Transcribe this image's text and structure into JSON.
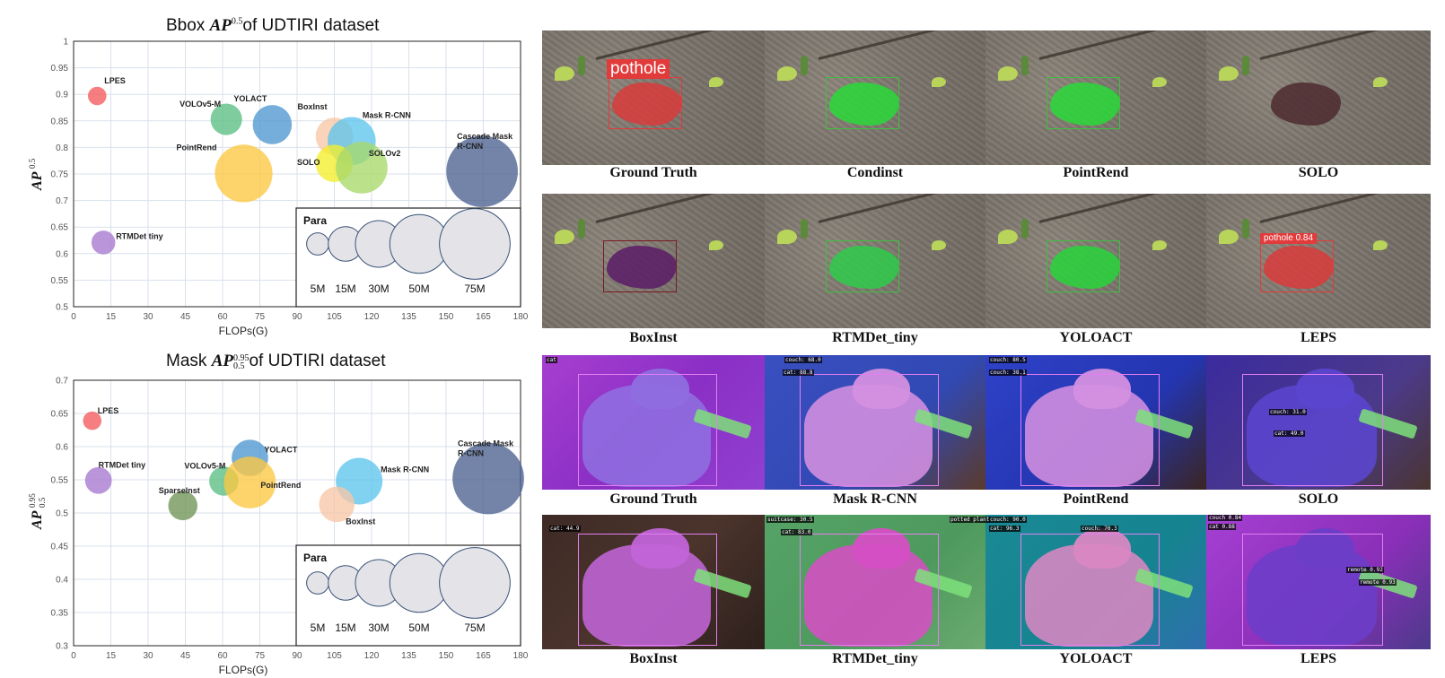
{
  "chart_data": [
    {
      "type": "scatter",
      "title_prefix": "Bbox",
      "title_metric": "AP",
      "title_sup": "0.5",
      "title_sub": "",
      "title_suffix": "of UDTIRI dataset",
      "xlabel": "FLOPs(G)",
      "ylabel_main": "AP",
      "ylabel_sup": "0.5",
      "ylabel_sub": "",
      "xlim": [
        0,
        180
      ],
      "ylim": [
        0.5,
        1.0
      ],
      "xticks": [
        0,
        15,
        30,
        45,
        60,
        75,
        90,
        105,
        120,
        135,
        150,
        165,
        180
      ],
      "yticks": [
        "0.5",
        "0.55",
        "0.6",
        "0.65",
        "0.7",
        "0.75",
        "0.8",
        "0.85",
        "0.9",
        "0.95",
        "1"
      ],
      "grid": true,
      "legend": {
        "title": "Para",
        "placement": "bottom-right",
        "sizes": [
          5,
          15,
          30,
          50,
          75
        ],
        "labels": [
          "5M",
          "15M",
          "30M",
          "50M",
          "75M"
        ]
      },
      "points": [
        {
          "name": "LPES",
          "x": 9.5,
          "y": 0.897,
          "params": 3,
          "color": "#f4595c"
        },
        {
          "name": "VOLOv5-M",
          "x": 61.5,
          "y": 0.853,
          "params": 12,
          "color": "#5bbf83"
        },
        {
          "name": "YOLACT",
          "x": 80,
          "y": 0.843,
          "params": 20,
          "color": "#4e97d1"
        },
        {
          "name": "BoxInst",
          "x": 105,
          "y": 0.821,
          "params": 18,
          "color": "#f7c7a6"
        },
        {
          "name": "Mask R-CNN",
          "x": 112,
          "y": 0.812,
          "params": 32,
          "color": "#5ec4ec"
        },
        {
          "name": "Cascade Mask R-CNN",
          "x": 164.5,
          "y": 0.755,
          "params": 77,
          "color": "#4b6290"
        },
        {
          "name": "PointRend",
          "x": 68.5,
          "y": 0.751,
          "params": 48,
          "color": "#fcc841"
        },
        {
          "name": "SOLO",
          "x": 105,
          "y": 0.77,
          "params": 18,
          "color": "#f4ee2c"
        },
        {
          "name": "SOLOv2",
          "x": 116,
          "y": 0.762,
          "params": 38,
          "color": "#a8d86a"
        },
        {
          "name": "RTMDet tiny",
          "x": 12,
          "y": 0.621,
          "params": 6,
          "color": "#a677cf"
        }
      ]
    },
    {
      "type": "scatter",
      "title_prefix": "Mask",
      "title_metric": "AP",
      "title_sup": "0.95",
      "title_sub": "0.5",
      "title_suffix": "of UDTIRI dataset",
      "xlabel": "FLOPs(G)",
      "ylabel_main": "AP",
      "ylabel_sup": "0.95",
      "ylabel_sub": "0.5",
      "xlim": [
        0,
        180
      ],
      "ylim": [
        0.3,
        0.7
      ],
      "xticks": [
        0,
        15,
        30,
        45,
        60,
        75,
        90,
        105,
        120,
        135,
        150,
        165,
        180
      ],
      "yticks": [
        "0.3",
        "0.35",
        "0.4",
        "0.45",
        "0.5",
        "0.55",
        "0.6",
        "0.65",
        "0.7"
      ],
      "grid": true,
      "legend": {
        "title": "Para",
        "placement": "bottom-right",
        "sizes": [
          5,
          15,
          30,
          50,
          75
        ],
        "labels": [
          "5M",
          "15M",
          "30M",
          "50M",
          "75M"
        ]
      },
      "points": [
        {
          "name": "LPES",
          "x": 7.5,
          "y": 0.639,
          "params": 3,
          "color": "#f4595c"
        },
        {
          "name": "RTMDet tiny",
          "x": 10,
          "y": 0.549,
          "params": 8,
          "color": "#a677cf"
        },
        {
          "name": "VOLOv5-M",
          "x": 60.5,
          "y": 0.548,
          "params": 10,
          "color": "#5bbf83"
        },
        {
          "name": "YOLACT",
          "x": 71,
          "y": 0.583,
          "params": 17,
          "color": "#4e97d1"
        },
        {
          "name": "PointRend",
          "x": 71,
          "y": 0.546,
          "params": 38,
          "color": "#fcc841"
        },
        {
          "name": "SparseInst",
          "x": 44,
          "y": 0.511,
          "params": 10,
          "color": "#6f9356"
        },
        {
          "name": "Mask R-CNN",
          "x": 115,
          "y": 0.548,
          "params": 30,
          "color": "#5ec4ec"
        },
        {
          "name": "BoxInst",
          "x": 106,
          "y": 0.513,
          "params": 16,
          "color": "#f7c7a6"
        },
        {
          "name": "Cascade Mask R-CNN",
          "x": 167,
          "y": 0.552,
          "params": 77,
          "color": "#4b6290"
        }
      ]
    }
  ],
  "grid_panels": {
    "row1_captions": [
      "Ground Truth",
      "Condinst",
      "PointRend",
      "SOLO"
    ],
    "row2_captions": [
      "BoxInst",
      "RTMDet_tiny",
      "YOLOACT",
      "LEPS"
    ],
    "row3_captions": [
      "Ground Truth",
      "Mask R-CNN",
      "PointRend",
      "SOLO"
    ],
    "row4_captions": [
      "BoxInst",
      "RTMDet_tiny",
      "YOLOACT",
      "LEPS"
    ],
    "tags": {
      "pothole": "pothole",
      "pothole_score": "pothole  0.84",
      "cat": "cat",
      "cat_score_1": "cat: 88.8",
      "couch_1": "couch: 68.0",
      "couch_2": "couch: 80.5",
      "couch_3": "couch: 38.1",
      "couch_4": "couch: 31.0",
      "cat_score_2": "cat: 49.0",
      "cat_score_3": "cat: 44.9",
      "suitcase": "suitcase: 30.5",
      "cat_score_4": "cat: 83.0",
      "potted": "potted plant",
      "couch_5": "couch: 90.0",
      "cat_score_5": "cat: 96.3",
      "couch_6": "couch: 70.3",
      "couch_7": "couch  0.84",
      "cat_score_6": "cat  0.88",
      "remote_1": "remote  0.92",
      "remote_2": "remote  0.93"
    },
    "colors": {
      "pothole_red": "#e23b3b",
      "seg_green": "#2ede3f",
      "cat_purple": "#7b3bd6",
      "cat_pink": "#d98ce0"
    }
  }
}
